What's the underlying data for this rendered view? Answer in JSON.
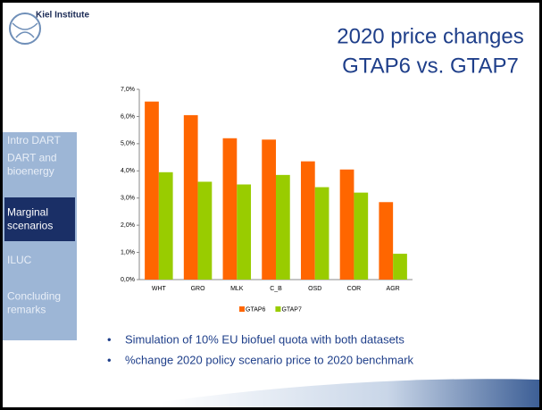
{
  "logo": "Kiel Institute",
  "title_lines": [
    "2020 price changes",
    "GTAP6 vs. GTAP7"
  ],
  "menu": [
    "Intro DART",
    "DART and bioenergy",
    "Marginal scenarios",
    "ILUC",
    "Concluding remarks"
  ],
  "active_menu": 2,
  "bullets": [
    "Simulation of 10% EU biofuel quota with both datasets",
    "%change 2020 policy scenario price to 2020 benchmark"
  ],
  "chart_data": {
    "type": "bar",
    "categories": [
      "WHT",
      "GRO",
      "MLK",
      "C_B",
      "OSD",
      "COR",
      "AGR"
    ],
    "series": [
      {
        "name": "GTAP6",
        "color": "#ff6600",
        "values": [
          6.55,
          6.05,
          5.2,
          5.15,
          4.35,
          4.05,
          2.85
        ]
      },
      {
        "name": "GTAP7",
        "color": "#99cc00",
        "values": [
          3.95,
          3.6,
          3.5,
          3.85,
          3.4,
          3.2,
          0.95
        ]
      }
    ],
    "ylim": [
      0,
      7
    ],
    "yticks": [
      {
        "value": 0,
        "label": "0,0%"
      },
      {
        "value": 1,
        "label": "1,0%"
      },
      {
        "value": 2,
        "label": "2,0%"
      },
      {
        "value": 3,
        "label": "3,0%"
      },
      {
        "value": 4,
        "label": "4,0%"
      },
      {
        "value": 5,
        "label": "5,0%"
      },
      {
        "value": 6,
        "label": "6,0%"
      },
      {
        "value": 7,
        "label": "7,0%"
      }
    ],
    "grid": false,
    "legend": "bottom"
  }
}
